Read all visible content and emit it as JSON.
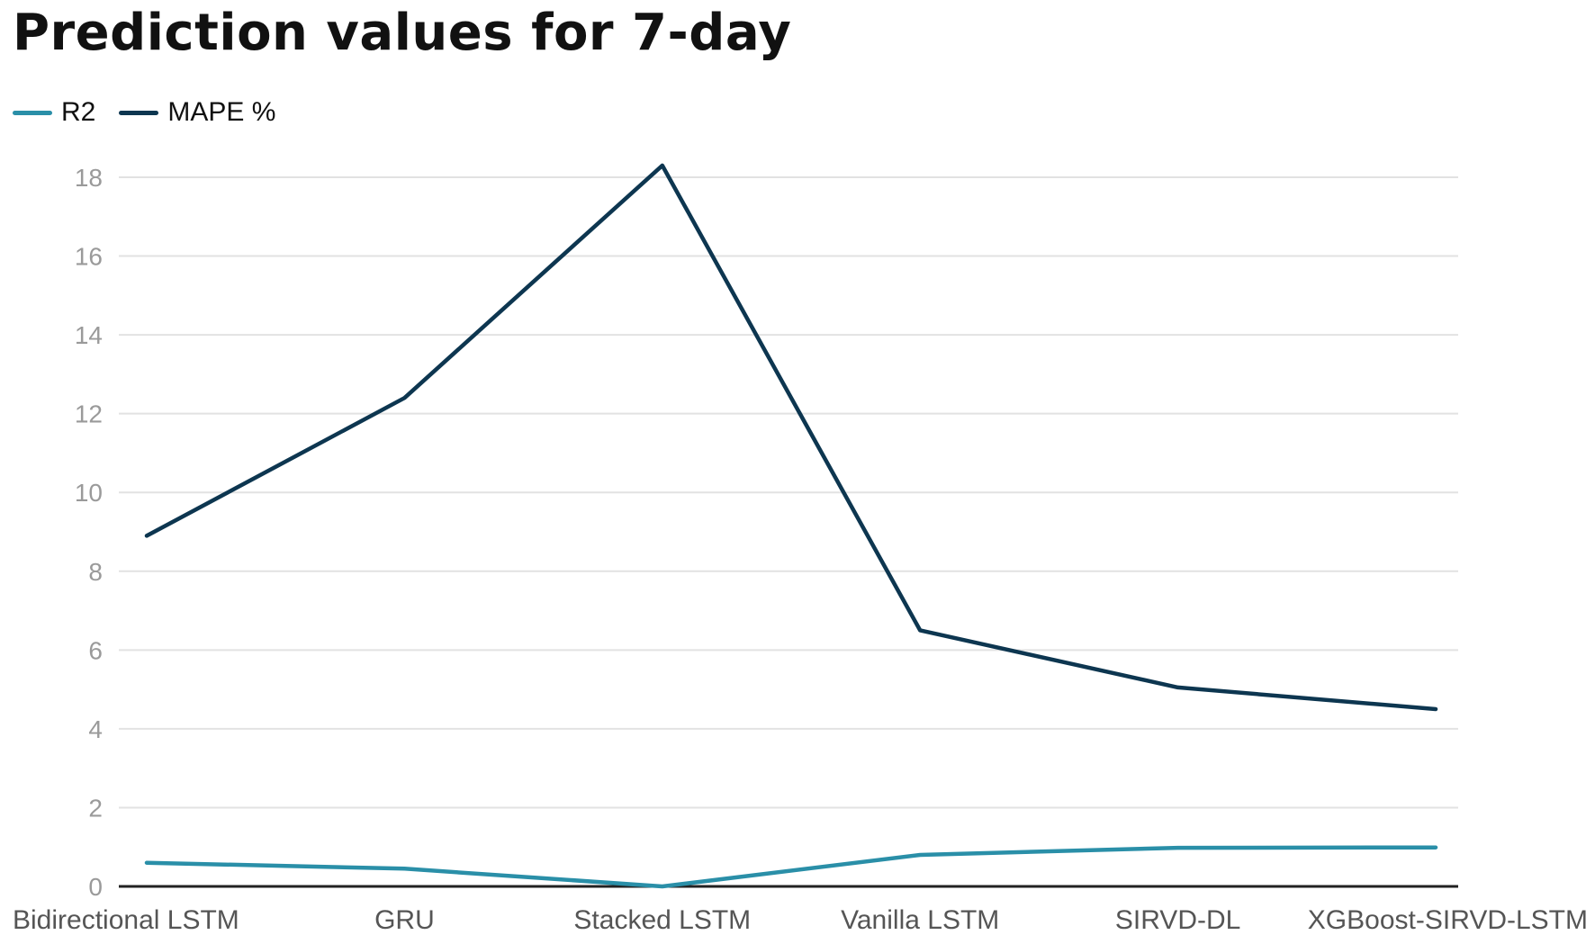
{
  "chart_data": {
    "type": "line",
    "title": "Prediction values for 7-day",
    "xlabel": "",
    "ylabel": "",
    "categories": [
      "Bidirectional LSTM",
      "GRU",
      "Stacked LSTM",
      "Vanilla LSTM",
      "SIRVD-DL",
      "XGBoost-SIRVD-LSTM"
    ],
    "series": [
      {
        "name": "R2",
        "color": "#2a8fa8",
        "values": [
          0.6,
          0.45,
          0.0,
          0.8,
          0.98,
          0.99
        ]
      },
      {
        "name": "MAPE %",
        "color": "#0d3650",
        "values": [
          8.9,
          12.4,
          18.3,
          6.5,
          5.05,
          4.5
        ]
      }
    ],
    "ylim": [
      0,
      18
    ],
    "yticks": [
      0,
      2,
      4,
      6,
      8,
      10,
      12,
      14,
      16,
      18
    ],
    "grid": true,
    "legend_position": "top-left"
  }
}
